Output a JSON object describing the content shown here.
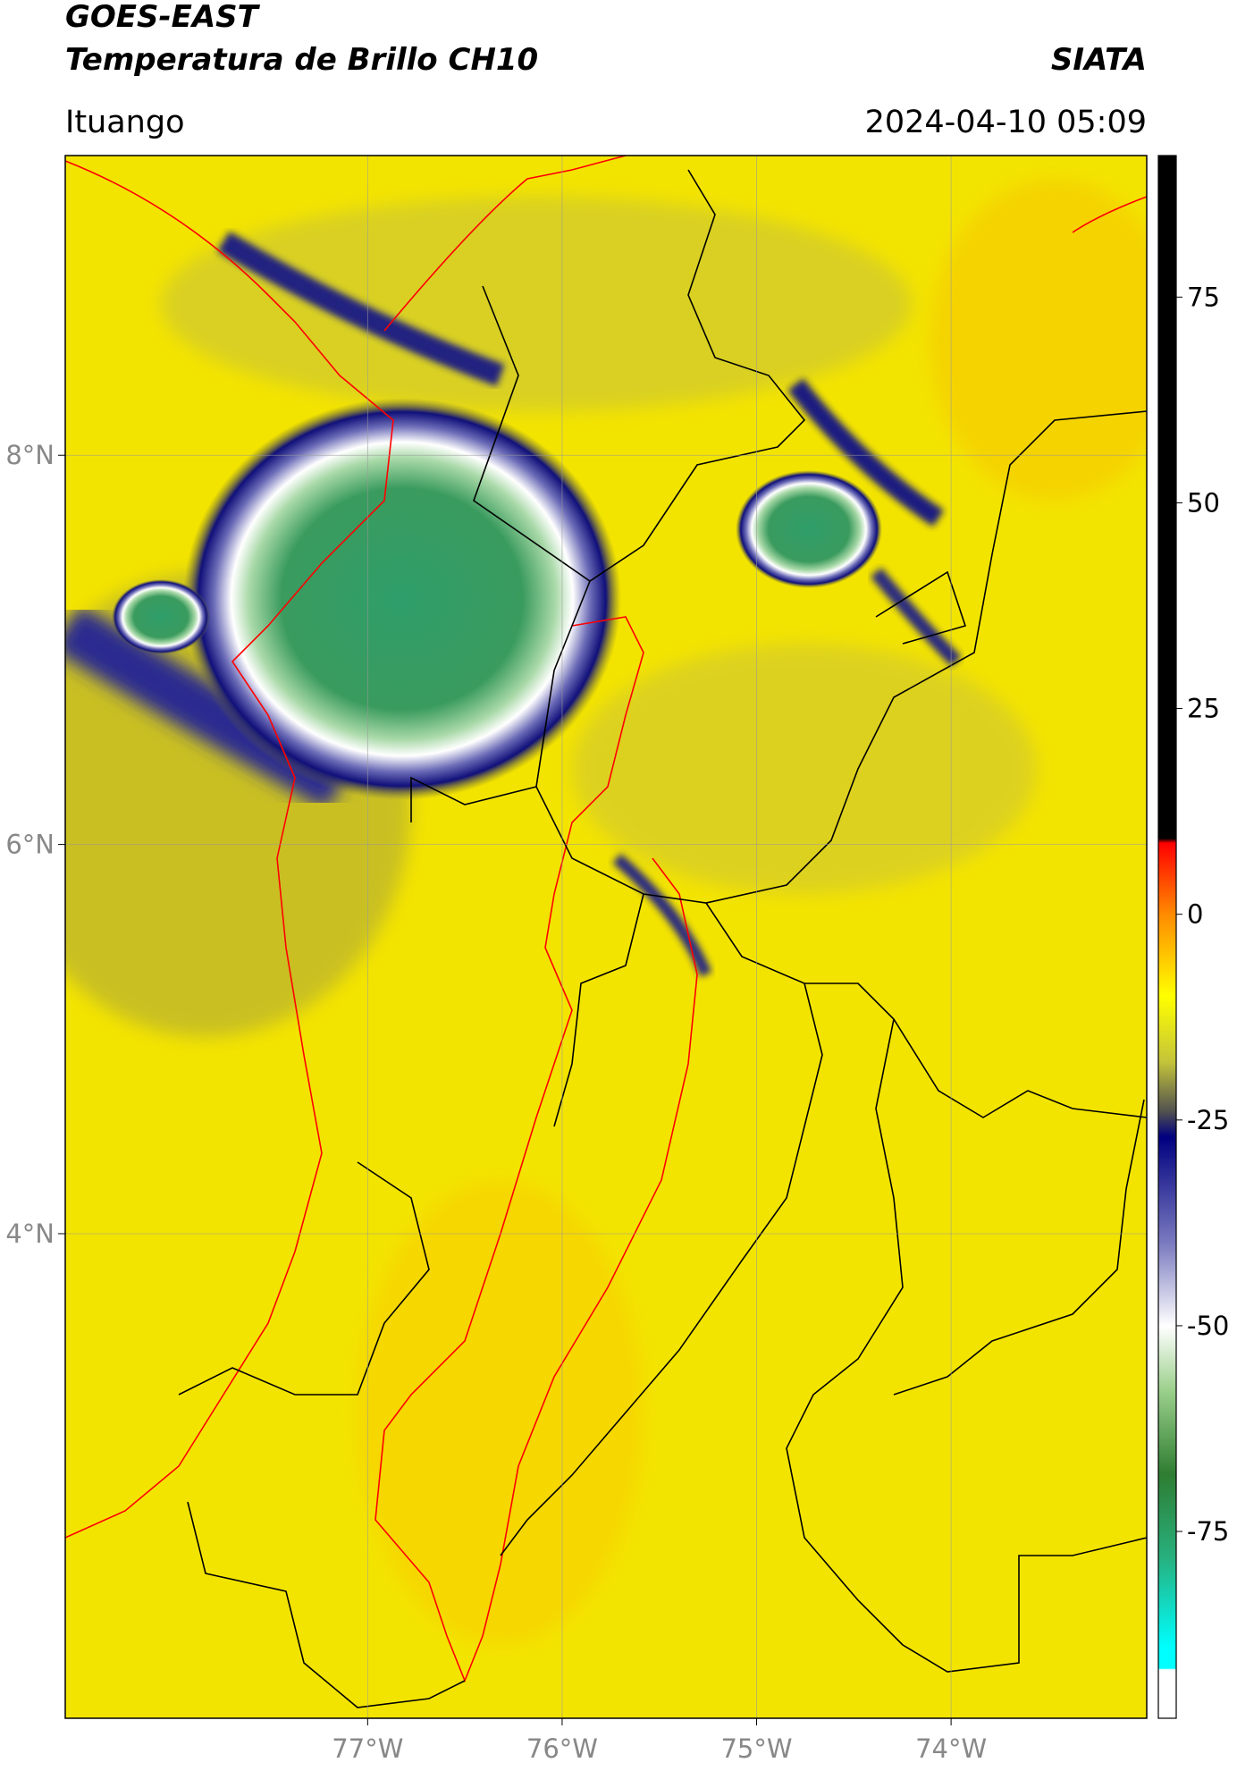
{
  "header": {
    "title": "GOES-EAST",
    "subtitle": "Temperatura de Brillo CH10",
    "source": "SIATA",
    "location": "Ituango",
    "datetime": "2024-04-10 05:09"
  },
  "chart_data": {
    "type": "map",
    "xlim": [
      -78.555,
      -72.994
    ],
    "ylim": [
      1.51,
      9.54
    ],
    "xticks": [
      {
        "value": -77,
        "label": "77°W"
      },
      {
        "value": -76,
        "label": "76°W"
      },
      {
        "value": -75,
        "label": "75°W"
      },
      {
        "value": -74,
        "label": "74°W"
      }
    ],
    "yticks": [
      {
        "value": 8,
        "label": "8°N"
      },
      {
        "value": 6,
        "label": "6°N"
      },
      {
        "value": 4,
        "label": "4°N"
      }
    ],
    "grid": true,
    "colorbar": {
      "lim": [
        -97.7,
        92.2
      ],
      "ticks": [
        75,
        50,
        25,
        0,
        -25,
        -50,
        -75
      ]
    }
  }
}
